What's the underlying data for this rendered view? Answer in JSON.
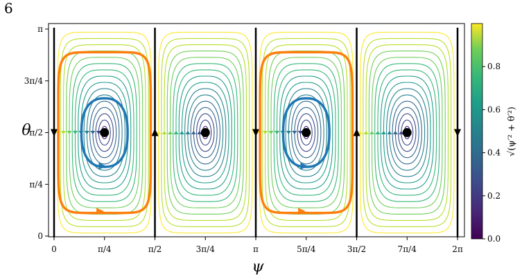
{
  "panel_label": "6",
  "chart_data": {
    "type": "streamplot",
    "xlabel": "ψ",
    "ylabel": "θ",
    "x_ticks": [
      {
        "value": 0,
        "label": "0"
      },
      {
        "value": 0.7854,
        "label": "π/4"
      },
      {
        "value": 1.5708,
        "label": "π/2"
      },
      {
        "value": 2.3562,
        "label": "3π/4"
      },
      {
        "value": 3.1416,
        "label": "π"
      },
      {
        "value": 3.927,
        "label": "5π/4"
      },
      {
        "value": 4.7124,
        "label": "3π/2"
      },
      {
        "value": 5.4978,
        "label": "7π/4"
      },
      {
        "value": 6.2832,
        "label": "2π"
      }
    ],
    "y_ticks": [
      {
        "value": 0,
        "label": "0"
      },
      {
        "value": 0.7854,
        "label": "π/4"
      },
      {
        "value": 1.5708,
        "label": "π/2"
      },
      {
        "value": 2.3562,
        "label": "3π/4"
      },
      {
        "value": 3.1416,
        "label": "π"
      }
    ],
    "xlim": [
      0,
      6.2832
    ],
    "ylim": [
      0,
      3.1416
    ],
    "colorbar": {
      "label": "√(ψ′² + θ′²)",
      "range": [
        0.0,
        1.0
      ],
      "ticks": [
        {
          "value": 0.0,
          "label": "0.0"
        },
        {
          "value": 0.2,
          "label": "0.2"
        },
        {
          "value": 0.4,
          "label": "0.4"
        },
        {
          "value": 0.6,
          "label": "0.6"
        },
        {
          "value": 0.8,
          "label": "0.8"
        }
      ],
      "colormap": "viridis"
    },
    "fixed_points": [
      {
        "x": 0.7854,
        "y": 1.5708
      },
      {
        "x": 2.3562,
        "y": 1.5708
      },
      {
        "x": 3.927,
        "y": 1.5708
      },
      {
        "x": 5.4978,
        "y": 1.5708
      }
    ],
    "separatrices": [
      {
        "x": 0,
        "direction": "down"
      },
      {
        "x": 1.5708,
        "direction": "up"
      },
      {
        "x": 3.1416,
        "direction": "down"
      },
      {
        "x": 4.7124,
        "direction": "up"
      },
      {
        "x": 6.2832,
        "direction": "down"
      }
    ],
    "highlighted_orbits": [
      {
        "color": "#1f77b4",
        "center_x": 0.7854,
        "center_y": 1.5708,
        "half_width_x": 0.36,
        "half_width_y": 0.52
      },
      {
        "color": "#ff7f0e",
        "center_x": 0.7854,
        "center_y": 1.5708,
        "half_width_x": 0.72,
        "half_width_y": 1.22
      },
      {
        "color": "#1f77b4",
        "center_x": 3.927,
        "center_y": 1.5708,
        "half_width_x": 0.36,
        "half_width_y": 0.52
      },
      {
        "color": "#ff7f0e",
        "center_x": 3.927,
        "center_y": 1.5708,
        "half_width_x": 0.72,
        "half_width_y": 1.22
      }
    ],
    "cells": [
      {
        "center_x": 0.7854,
        "rotation": "counterclockwise"
      },
      {
        "center_x": 2.3562,
        "rotation": "clockwise"
      },
      {
        "center_x": 3.927,
        "rotation": "counterclockwise"
      },
      {
        "center_x": 5.4978,
        "rotation": "clockwise"
      }
    ]
  }
}
